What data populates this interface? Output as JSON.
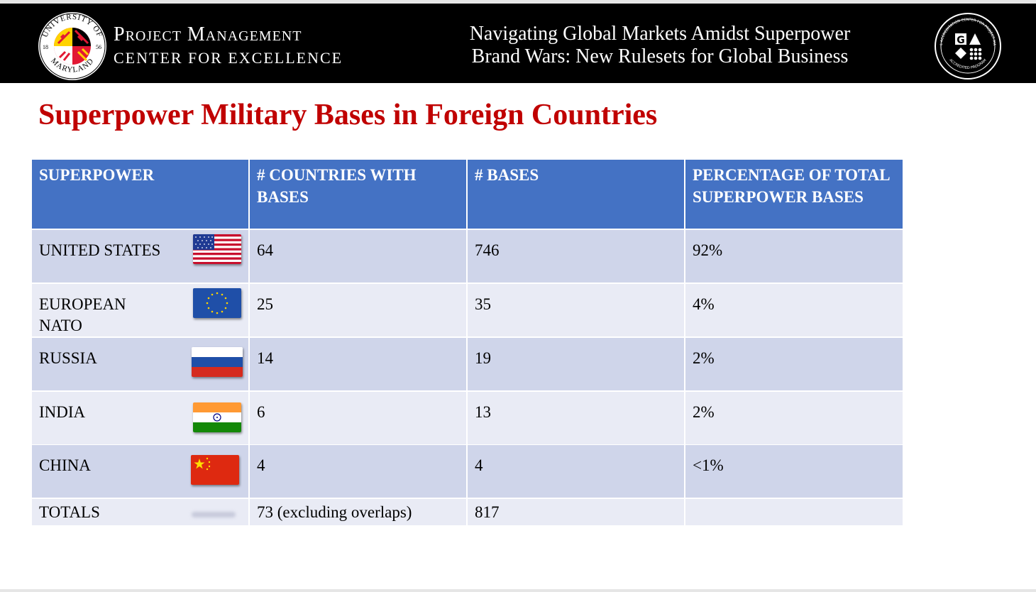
{
  "header": {
    "org_line1": "Project Management",
    "org_line2": "CENTER FOR EXCELLENCE",
    "seal_top_text": "UNIVERSITY OF",
    "seal_bottom_text": "MARYLAND",
    "seal_year_left": "18",
    "seal_year_right": "56",
    "title_line1": "Navigating Global Markets Amidst Superpower",
    "title_line2": "Brand Wars: New Rulesets for Global Business",
    "badge_letters": "G",
    "badge_ring_text": "THE GLOBAL ACCREDITATION CENTER FOR PROJECT MANAGEMENT",
    "badge_bottom_text": "ACCREDITED PROGRAM"
  },
  "page_title": "Superpower Military Bases in Foreign Countries",
  "table": {
    "headers": [
      "SUPERPOWER",
      "# COUNTRIES WITH BASES",
      "# BASES",
      "PERCENTAGE OF TOTAL SUPERPOWER BASES"
    ],
    "rows": [
      {
        "name": "UNITED STATES",
        "countries": "64",
        "bases": "746",
        "percent": "92%",
        "flag": "us-flag-icon"
      },
      {
        "name": "EUROPEAN NATO",
        "countries": "25",
        "bases": "35",
        "percent": "4%",
        "flag": "eu-flag-icon"
      },
      {
        "name": "RUSSIA",
        "countries": "14",
        "bases": "19",
        "percent": "2%",
        "flag": "russia-flag-icon"
      },
      {
        "name": "INDIA",
        "countries": "6",
        "bases": "13",
        "percent": "2%",
        "flag": "india-flag-icon"
      },
      {
        "name": "CHINA",
        "countries": "4",
        "bases": "4",
        "percent": "<1%",
        "flag": "china-flag-icon"
      }
    ],
    "totals": {
      "label": "TOTALS",
      "countries": "73 (excluding overlaps)",
      "bases": "817",
      "percent": ""
    }
  },
  "colors": {
    "title_red": "#c00000",
    "header_blue": "#4472c4",
    "row_dark": "#cfd5ea",
    "row_light": "#e9ebf5",
    "banner_black": "#000000"
  }
}
